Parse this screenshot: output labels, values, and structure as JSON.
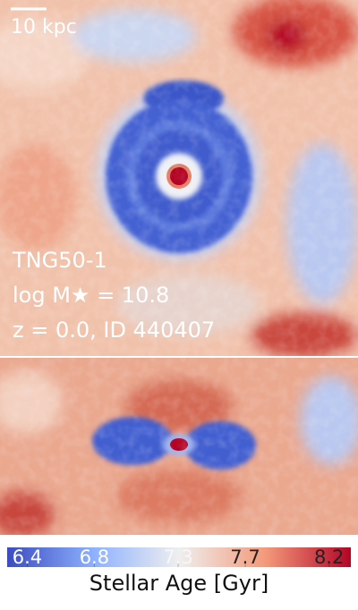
{
  "scale_bar": {
    "label": "10 kpc"
  },
  "annotations": [
    "TNG50-1",
    "log M★ = 10.8",
    "z = 0.0, ID 440407"
  ],
  "colorbar": {
    "label": "Stellar Age [Gyr]",
    "lim": [
      6.28,
      8.33
    ],
    "ticks": [
      6.4,
      6.8,
      7.3,
      7.7,
      8.2
    ]
  }
}
